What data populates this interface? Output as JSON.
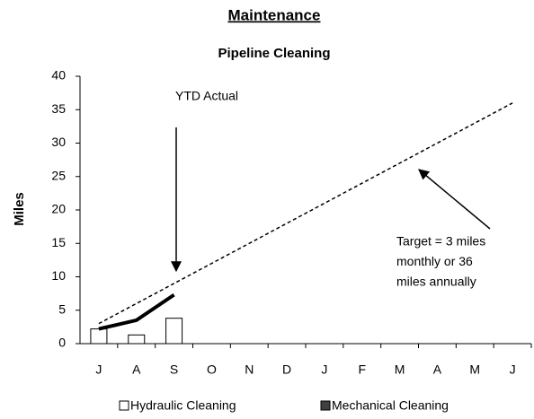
{
  "chart_data": {
    "type": "bar",
    "title": "Maintenance",
    "subtitle": "Pipeline Cleaning",
    "y_label": "Miles",
    "categories": [
      "J",
      "A",
      "S",
      "O",
      "N",
      "D",
      "J",
      "F",
      "M",
      "A",
      "M",
      "J"
    ],
    "series": [
      {
        "name": "Hydraulic Cleaning",
        "kind": "bar",
        "color": "#ffffff",
        "values": [
          2.2,
          1.3,
          3.8,
          null,
          null,
          null,
          null,
          null,
          null,
          null,
          null,
          null
        ]
      },
      {
        "name": "Mechanical Cleaning",
        "kind": "bar",
        "color": "#404040",
        "values": [
          null,
          null,
          null,
          null,
          null,
          null,
          null,
          null,
          null,
          null,
          null,
          null
        ]
      },
      {
        "kind": "line",
        "color": "#000000",
        "dashed": false,
        "values": [
          2.2,
          3.5,
          7.3,
          null,
          null,
          null,
          null,
          null,
          null,
          null,
          null,
          null
        ]
      },
      {
        "kind": "line",
        "color": "#000000",
        "dashed": true,
        "values": [
          3,
          6,
          9,
          12,
          15,
          18,
          21,
          24,
          27,
          30,
          33,
          36
        ]
      }
    ],
    "annotations": [
      {
        "lines": [
          "YTD Actual"
        ]
      },
      {
        "lines": [
          "Target = 3 miles",
          "monthly or 36",
          "miles annually"
        ]
      }
    ],
    "ylim": [
      0,
      40
    ],
    "yticks": [
      0,
      5,
      10,
      15,
      20,
      25,
      30,
      35,
      40
    ],
    "legend": "bottom"
  }
}
